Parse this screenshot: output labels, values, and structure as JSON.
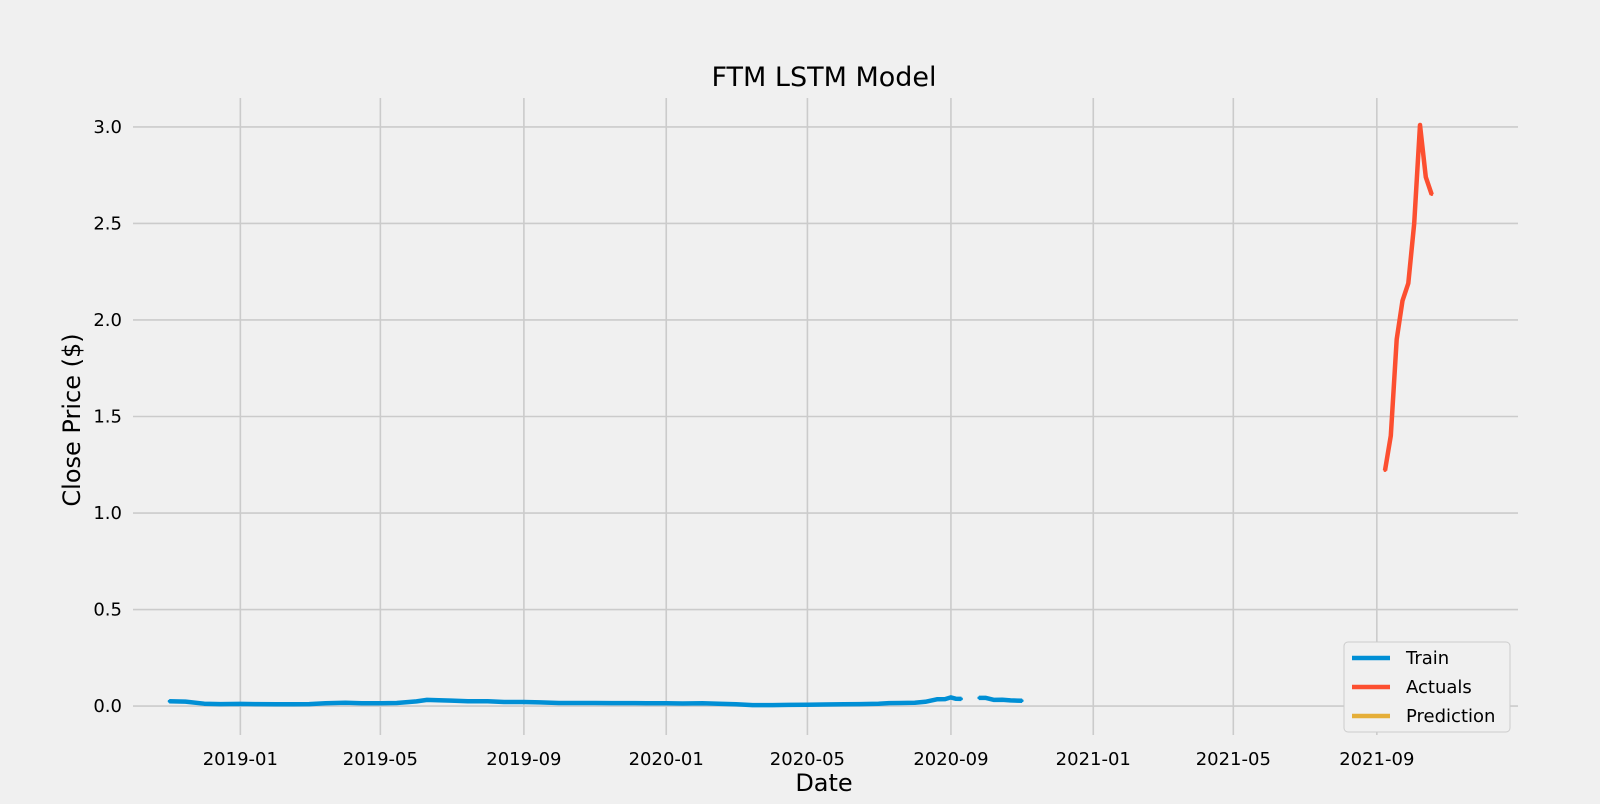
{
  "chart_data": {
    "type": "line",
    "title": "FTM LSTM Model",
    "xlabel": "Date",
    "ylabel": "Close Price ($)",
    "x_ticks": [
      "2019-01",
      "2019-05",
      "2019-09",
      "2020-01",
      "2020-05",
      "2020-09",
      "2021-01",
      "2021-05",
      "2021-09"
    ],
    "y_ticks": [
      "0.0",
      "0.5",
      "1.0",
      "1.5",
      "2.0",
      "2.5",
      "3.0"
    ],
    "xlim": [
      "2018-10-01",
      "2021-12-31"
    ],
    "ylim": [
      -0.15,
      3.15
    ],
    "grid": true,
    "legend_position": "bottom-right",
    "series": [
      {
        "name": "Train",
        "color": "#008fd5",
        "segments": [
          [
            [
              "2018-11-01",
              0.025
            ],
            [
              "2018-11-15",
              0.023
            ],
            [
              "2018-12-01",
              0.012
            ],
            [
              "2018-12-15",
              0.01
            ],
            [
              "2019-01-01",
              0.011
            ],
            [
              "2019-01-15",
              0.01
            ],
            [
              "2019-02-01",
              0.009
            ],
            [
              "2019-02-15",
              0.009
            ],
            [
              "2019-03-01",
              0.01
            ],
            [
              "2019-03-15",
              0.014
            ],
            [
              "2019-04-01",
              0.017
            ],
            [
              "2019-04-15",
              0.014
            ],
            [
              "2019-05-01",
              0.014
            ],
            [
              "2019-05-15",
              0.016
            ],
            [
              "2019-06-01",
              0.024
            ],
            [
              "2019-06-10",
              0.032
            ],
            [
              "2019-06-20",
              0.03
            ],
            [
              "2019-07-01",
              0.028
            ],
            [
              "2019-07-15",
              0.025
            ],
            [
              "2019-08-01",
              0.025
            ],
            [
              "2019-08-15",
              0.021
            ],
            [
              "2019-09-01",
              0.021
            ],
            [
              "2019-09-15",
              0.019
            ],
            [
              "2019-10-01",
              0.016
            ],
            [
              "2019-10-15",
              0.016
            ],
            [
              "2019-11-01",
              0.016
            ],
            [
              "2019-11-15",
              0.015
            ],
            [
              "2019-12-01",
              0.015
            ],
            [
              "2019-12-15",
              0.014
            ],
            [
              "2020-01-01",
              0.014
            ],
            [
              "2020-01-15",
              0.013
            ],
            [
              "2020-02-01",
              0.014
            ],
            [
              "2020-02-15",
              0.012
            ],
            [
              "2020-03-01",
              0.009
            ],
            [
              "2020-03-15",
              0.005
            ],
            [
              "2020-04-01",
              0.005
            ],
            [
              "2020-04-15",
              0.006
            ],
            [
              "2020-05-01",
              0.007
            ],
            [
              "2020-05-15",
              0.008
            ],
            [
              "2020-06-01",
              0.009
            ],
            [
              "2020-06-15",
              0.01
            ],
            [
              "2020-07-01",
              0.012
            ],
            [
              "2020-07-10",
              0.015
            ],
            [
              "2020-07-20",
              0.016
            ],
            [
              "2020-08-01",
              0.017
            ],
            [
              "2020-08-10",
              0.022
            ],
            [
              "2020-08-20",
              0.035
            ],
            [
              "2020-08-27",
              0.036
            ],
            [
              "2020-09-01",
              0.045
            ],
            [
              "2020-09-05",
              0.038
            ],
            [
              "2020-09-10",
              0.037
            ]
          ],
          [
            [
              "2020-09-25",
              0.042
            ],
            [
              "2020-10-01",
              0.042
            ],
            [
              "2020-10-08",
              0.032
            ],
            [
              "2020-10-15",
              0.033
            ],
            [
              "2020-10-22",
              0.029
            ],
            [
              "2020-11-01",
              0.027
            ]
          ]
        ]
      },
      {
        "name": "Actuals",
        "color": "#fc4f30",
        "segments": [
          [
            [
              "2021-09-08",
              1.22
            ],
            [
              "2021-09-13",
              1.4
            ],
            [
              "2021-09-18",
              1.9
            ],
            [
              "2021-09-23",
              2.1
            ],
            [
              "2021-09-28",
              2.19
            ],
            [
              "2021-10-03",
              2.5
            ],
            [
              "2021-10-08",
              3.01
            ],
            [
              "2021-10-13",
              2.74
            ],
            [
              "2021-10-18",
              2.65
            ]
          ]
        ]
      },
      {
        "name": "Prediction",
        "color": "#e5ae38",
        "segments": []
      }
    ]
  }
}
